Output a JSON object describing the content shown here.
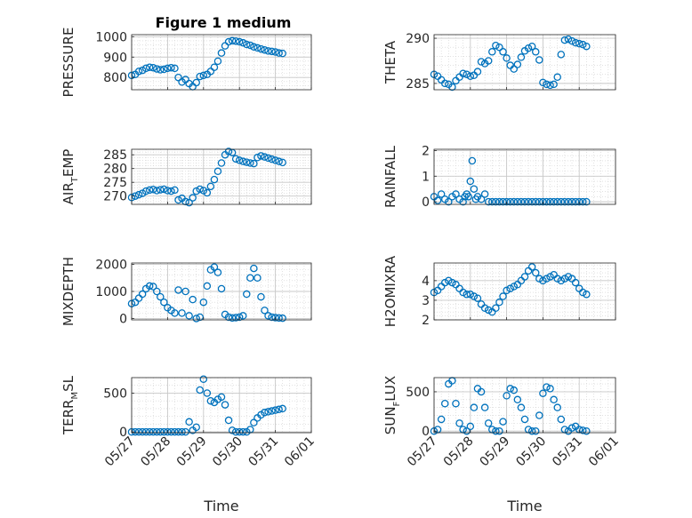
{
  "figure": {
    "title": "Figure 1 medium"
  },
  "style": {
    "marker_color": "#0072bd",
    "grid_color": "#d0d0d0",
    "axis_color": "#262626"
  },
  "chart_data": [
    {
      "type": "scatter",
      "ylabel": "PRESSURE",
      "ylabel_sub": null,
      "title": "Figure 1 medium",
      "ylim": [
        740,
        1010
      ],
      "yticks": [
        800,
        900,
        1000
      ],
      "xlim": [
        0,
        5
      ],
      "xticks": [
        "05/27",
        "05/28",
        "05/29",
        "05/30",
        "05/31",
        "06/01"
      ],
      "xlabel": "",
      "grid": true,
      "x": [
        0.0,
        0.1,
        0.2,
        0.3,
        0.4,
        0.5,
        0.6,
        0.7,
        0.8,
        0.9,
        1.0,
        1.1,
        1.2,
        1.3,
        1.4,
        1.5,
        1.6,
        1.7,
        1.8,
        1.9,
        2.0,
        2.1,
        2.2,
        2.3,
        2.4,
        2.5,
        2.6,
        2.7,
        2.8,
        2.9,
        3.0,
        3.1,
        3.2,
        3.3,
        3.4,
        3.5,
        3.6,
        3.7,
        3.8,
        3.9,
        4.0,
        4.1,
        4.2
      ],
      "y": [
        810,
        815,
        830,
        835,
        845,
        850,
        848,
        842,
        838,
        840,
        845,
        848,
        845,
        800,
        778,
        790,
        770,
        755,
        775,
        805,
        810,
        815,
        830,
        850,
        880,
        920,
        955,
        975,
        980,
        978,
        975,
        970,
        962,
        958,
        950,
        945,
        940,
        935,
        930,
        928,
        925,
        920,
        918
      ]
    },
    {
      "type": "scatter",
      "ylabel": "THETA",
      "ylabel_sub": null,
      "ylim": [
        284.3,
        290.4
      ],
      "yticks": [
        285,
        290
      ],
      "xlim": [
        0,
        5
      ],
      "xticks": [
        "05/27",
        "05/28",
        "05/29",
        "05/30",
        "05/31",
        "06/01"
      ],
      "xlabel": "",
      "grid": true,
      "x": [
        0.0,
        0.1,
        0.2,
        0.3,
        0.4,
        0.5,
        0.6,
        0.7,
        0.8,
        0.9,
        1.0,
        1.1,
        1.2,
        1.3,
        1.4,
        1.5,
        1.6,
        1.7,
        1.8,
        1.9,
        2.0,
        2.1,
        2.2,
        2.3,
        2.4,
        2.5,
        2.6,
        2.7,
        2.8,
        2.9,
        3.0,
        3.1,
        3.2,
        3.3,
        3.4,
        3.5,
        3.6,
        3.7,
        3.8,
        3.9,
        4.0,
        4.1,
        4.2
      ],
      "y": [
        286.0,
        285.8,
        285.4,
        285.0,
        284.9,
        284.6,
        285.3,
        285.7,
        286.1,
        286.0,
        285.8,
        285.9,
        286.3,
        287.4,
        287.2,
        287.5,
        288.5,
        289.2,
        289.0,
        288.5,
        287.8,
        287.0,
        286.6,
        287.1,
        287.9,
        288.6,
        288.9,
        289.1,
        288.5,
        287.6,
        285.1,
        284.9,
        284.8,
        284.9,
        285.7,
        288.2,
        289.8,
        289.9,
        289.7,
        289.5,
        289.4,
        289.3,
        289.1
      ]
    },
    {
      "type": "scatter",
      "ylabel": "AIR",
      "ylabel_sub": "T",
      "ylabel_suffix": "EMP",
      "ylim": [
        267,
        287
      ],
      "yticks": [
        270,
        275,
        280,
        285
      ],
      "xlim": [
        0,
        5
      ],
      "xticks": [
        "05/27",
        "05/28",
        "05/29",
        "05/30",
        "05/31",
        "06/01"
      ],
      "xlabel": "",
      "grid": true,
      "x": [
        0.0,
        0.1,
        0.2,
        0.3,
        0.4,
        0.5,
        0.6,
        0.7,
        0.8,
        0.9,
        1.0,
        1.1,
        1.2,
        1.3,
        1.4,
        1.5,
        1.6,
        1.7,
        1.8,
        1.9,
        2.0,
        2.1,
        2.2,
        2.3,
        2.4,
        2.5,
        2.6,
        2.7,
        2.8,
        2.9,
        3.0,
        3.1,
        3.2,
        3.3,
        3.4,
        3.5,
        3.6,
        3.7,
        3.8,
        3.9,
        4.0,
        4.1,
        4.2
      ],
      "y": [
        269.5,
        270.0,
        270.5,
        271.0,
        271.8,
        272.2,
        272.4,
        272.0,
        272.3,
        272.5,
        272.0,
        271.8,
        272.2,
        268.6,
        269.2,
        268.0,
        267.6,
        269.4,
        271.8,
        272.5,
        272.0,
        271.2,
        273.5,
        276.0,
        279.0,
        282.0,
        285.0,
        286.2,
        285.8,
        283.5,
        283.0,
        282.6,
        282.3,
        282.0,
        281.8,
        284.0,
        284.6,
        284.2,
        283.8,
        283.4,
        283.0,
        282.6,
        282.2
      ]
    },
    {
      "type": "scatter",
      "ylabel": "RAINFALL",
      "ylabel_sub": null,
      "ylim": [
        -0.1,
        2.05
      ],
      "yticks": [
        0,
        1,
        2
      ],
      "xlim": [
        0,
        5
      ],
      "xticks": [
        "05/27",
        "05/28",
        "05/29",
        "05/30",
        "05/31",
        "06/01"
      ],
      "xlabel": "",
      "grid": true,
      "x": [
        0.0,
        0.1,
        0.2,
        0.3,
        0.4,
        0.5,
        0.6,
        0.7,
        0.8,
        0.85,
        0.9,
        0.95,
        1.0,
        1.05,
        1.1,
        1.15,
        1.2,
        1.3,
        1.4,
        1.5,
        1.6,
        1.7,
        1.8,
        1.9,
        2.0,
        2.1,
        2.2,
        2.3,
        2.4,
        2.5,
        2.6,
        2.7,
        2.8,
        2.9,
        3.0,
        3.1,
        3.2,
        3.3,
        3.4,
        3.5,
        3.6,
        3.7,
        3.8,
        3.9,
        4.0,
        4.1,
        4.2
      ],
      "y": [
        0.2,
        0.05,
        0.3,
        0.1,
        0.0,
        0.2,
        0.3,
        0.1,
        0.0,
        0.2,
        0.3,
        0.2,
        0.8,
        1.6,
        0.5,
        0.1,
        0.2,
        0.1,
        0.3,
        0.0,
        0.0,
        0.0,
        0.0,
        0.0,
        0.0,
        0.0,
        0.0,
        0.0,
        0.0,
        0.0,
        0.0,
        0.0,
        0.0,
        0.0,
        0.0,
        0.0,
        0.0,
        0.0,
        0.0,
        0.0,
        0.0,
        0.0,
        0.0,
        0.0,
        0.0,
        0.0,
        0.0
      ]
    },
    {
      "type": "scatter",
      "ylabel": "MIXDEPTH",
      "ylabel_sub": null,
      "ylim": [
        -50,
        2050
      ],
      "yticks": [
        0,
        1000,
        2000
      ],
      "xlim": [
        0,
        5
      ],
      "xticks": [
        "05/27",
        "05/28",
        "05/29",
        "05/30",
        "05/31",
        "06/01"
      ],
      "xlabel": "",
      "grid": true,
      "x": [
        0.0,
        0.1,
        0.2,
        0.3,
        0.4,
        0.5,
        0.6,
        0.7,
        0.8,
        0.9,
        1.0,
        1.1,
        1.2,
        1.3,
        1.4,
        1.5,
        1.6,
        1.7,
        1.8,
        1.9,
        2.0,
        2.1,
        2.2,
        2.3,
        2.4,
        2.5,
        2.6,
        2.7,
        2.8,
        2.9,
        3.0,
        3.1,
        3.2,
        3.3,
        3.4,
        3.5,
        3.6,
        3.7,
        3.8,
        3.9,
        4.0,
        4.1,
        4.2
      ],
      "y": [
        550,
        600,
        750,
        900,
        1100,
        1200,
        1180,
        1000,
        800,
        600,
        400,
        300,
        200,
        1050,
        200,
        1000,
        100,
        700,
        0,
        50,
        600,
        1200,
        1800,
        1900,
        1700,
        1100,
        150,
        50,
        20,
        30,
        50,
        100,
        900,
        1500,
        1850,
        1500,
        800,
        300,
        100,
        50,
        30,
        20,
        10
      ]
    },
    {
      "type": "scatter",
      "ylabel": "H2OMIXRA",
      "ylabel_sub": null,
      "ylim": [
        2,
        4.9
      ],
      "yticks": [
        2,
        3,
        4
      ],
      "xlim": [
        0,
        5
      ],
      "xticks": [
        "05/27",
        "05/28",
        "05/29",
        "05/30",
        "05/31",
        "06/01"
      ],
      "xlabel": "",
      "grid": true,
      "x": [
        0.0,
        0.1,
        0.2,
        0.3,
        0.4,
        0.5,
        0.6,
        0.7,
        0.8,
        0.9,
        1.0,
        1.1,
        1.2,
        1.3,
        1.4,
        1.5,
        1.6,
        1.7,
        1.8,
        1.9,
        2.0,
        2.1,
        2.2,
        2.3,
        2.4,
        2.5,
        2.6,
        2.7,
        2.8,
        2.9,
        3.0,
        3.1,
        3.2,
        3.3,
        3.4,
        3.5,
        3.6,
        3.7,
        3.8,
        3.9,
        4.0,
        4.1,
        4.2
      ],
      "y": [
        3.4,
        3.5,
        3.7,
        3.9,
        4.0,
        3.9,
        3.8,
        3.6,
        3.4,
        3.3,
        3.3,
        3.2,
        3.1,
        2.8,
        2.6,
        2.5,
        2.4,
        2.6,
        2.9,
        3.2,
        3.5,
        3.6,
        3.7,
        3.8,
        4.0,
        4.2,
        4.5,
        4.7,
        4.4,
        4.1,
        4.0,
        4.1,
        4.2,
        4.3,
        4.1,
        4.0,
        4.1,
        4.2,
        4.1,
        3.9,
        3.6,
        3.4,
        3.3
      ]
    },
    {
      "type": "scatter",
      "ylabel": "TERR",
      "ylabel_sub": "M",
      "ylabel_suffix": "SL",
      "ylim": [
        -10,
        700
      ],
      "yticks": [
        0,
        500
      ],
      "xlim": [
        0,
        5
      ],
      "xticks": [
        "05/27",
        "05/28",
        "05/29",
        "05/30",
        "05/31",
        "06/01"
      ],
      "xlabel": "Time",
      "grid": true,
      "x": [
        0.0,
        0.1,
        0.2,
        0.3,
        0.4,
        0.5,
        0.6,
        0.7,
        0.8,
        0.9,
        1.0,
        1.1,
        1.2,
        1.3,
        1.4,
        1.5,
        1.6,
        1.7,
        1.8,
        1.9,
        2.0,
        2.1,
        2.2,
        2.3,
        2.4,
        2.5,
        2.6,
        2.7,
        2.8,
        2.9,
        3.0,
        3.1,
        3.2,
        3.3,
        3.4,
        3.5,
        3.6,
        3.7,
        3.8,
        3.9,
        4.0,
        4.1,
        4.2
      ],
      "y": [
        0,
        0,
        0,
        0,
        0,
        0,
        0,
        0,
        0,
        0,
        0,
        0,
        0,
        0,
        0,
        0,
        130,
        20,
        60,
        540,
        680,
        500,
        400,
        380,
        420,
        450,
        350,
        150,
        20,
        0,
        0,
        0,
        0,
        30,
        120,
        180,
        220,
        250,
        260,
        270,
        280,
        290,
        300
      ]
    },
    {
      "type": "scatter",
      "ylabel": "SUN",
      "ylabel_sub": "F",
      "ylabel_suffix": "LUX",
      "ylim": [
        -20,
        680
      ],
      "yticks": [
        0,
        500
      ],
      "xlim": [
        0,
        5
      ],
      "xticks": [
        "05/27",
        "05/28",
        "05/29",
        "05/30",
        "05/31",
        "06/01"
      ],
      "xlabel": "Time",
      "grid": true,
      "x": [
        0.0,
        0.1,
        0.2,
        0.3,
        0.4,
        0.5,
        0.6,
        0.7,
        0.8,
        0.9,
        1.0,
        1.1,
        1.2,
        1.3,
        1.4,
        1.5,
        1.6,
        1.7,
        1.8,
        1.9,
        2.0,
        2.1,
        2.2,
        2.3,
        2.4,
        2.5,
        2.6,
        2.7,
        2.8,
        2.9,
        3.0,
        3.1,
        3.2,
        3.3,
        3.4,
        3.5,
        3.6,
        3.7,
        3.8,
        3.9,
        4.0,
        4.1,
        4.2
      ],
      "y": [
        0,
        20,
        150,
        350,
        600,
        640,
        350,
        100,
        20,
        0,
        60,
        300,
        540,
        500,
        300,
        100,
        20,
        0,
        0,
        120,
        450,
        540,
        520,
        400,
        300,
        150,
        20,
        0,
        0,
        200,
        480,
        560,
        540,
        400,
        300,
        150,
        20,
        0,
        40,
        60,
        20,
        10,
        0
      ]
    }
  ]
}
